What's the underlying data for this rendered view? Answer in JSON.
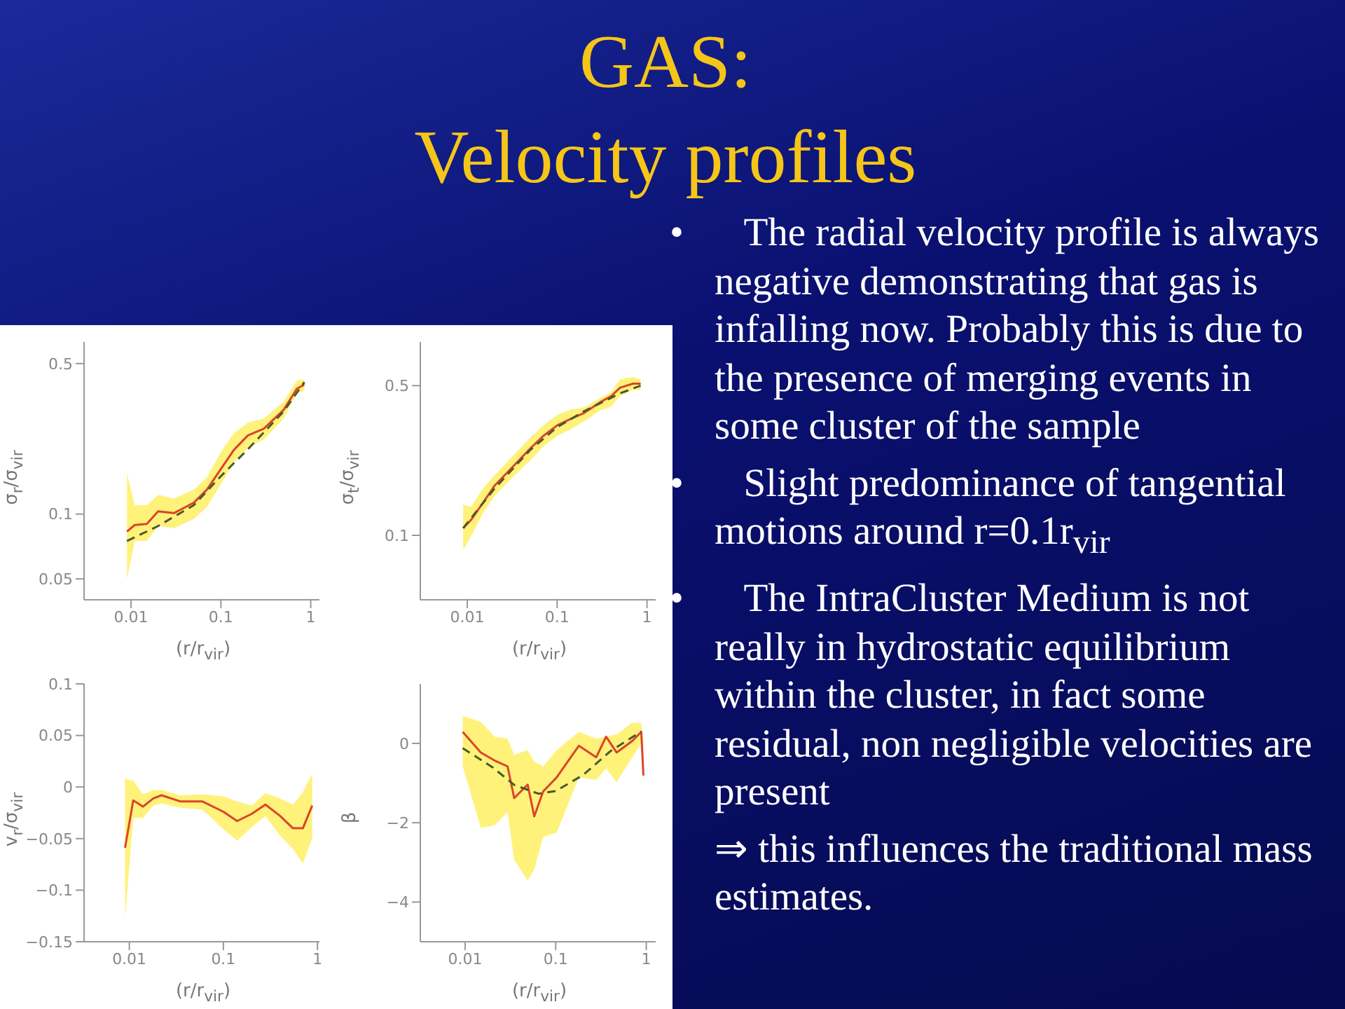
{
  "chart_data": [
    {
      "type": "other",
      "title": "GAS:",
      "subtitle": "Velocity profiles",
      "annotations": [
        "• The radial velocity profile is always negative demonstrating that gas is infalling now. Probably this is due to the presence of merging events in some cluster of the sample",
        "• Slight predominance of tangential motions around r=0.1r$_{vir}$",
        "• The IntraCluster Medium is not really in hydrostatic equilibrium within the cluster, in fact some residual, non negligible velocities are present",
        "⇒ this influences the traditional mass estimates."
      ]
    },
    {
      "type": "line",
      "xlabel": "(r/r$_{vir}$)",
      "ylabel": "σ$_{r}$/σ$_{vir}$",
      "log": "xy",
      "marker": "none",
      "xlim": [
        0.003,
        1.25
      ],
      "xticks": [
        0.01,
        0.1,
        1
      ],
      "ylim": [
        0.04,
        0.63
      ],
      "yticks": [
        0.05,
        0.1,
        0.5
      ],
      "series": [
        {
          "color": "#d9452b",
          "x": [
            0.009,
            0.011,
            0.015,
            0.02,
            0.03,
            0.05,
            0.07,
            0.1,
            0.14,
            0.2,
            0.3,
            0.5,
            0.7,
            0.85
          ],
          "values": [
            0.083,
            0.089,
            0.09,
            0.103,
            0.101,
            0.113,
            0.13,
            0.162,
            0.199,
            0.232,
            0.249,
            0.305,
            0.382,
            0.399
          ],
          "lower": [
            0.05,
            0.075,
            0.075,
            0.088,
            0.086,
            0.095,
            0.108,
            0.138,
            0.174,
            0.203,
            0.222,
            0.278,
            0.365,
            0.373
          ],
          "upper": [
            0.155,
            0.11,
            0.11,
            0.123,
            0.118,
            0.13,
            0.148,
            0.194,
            0.238,
            0.266,
            0.278,
            0.333,
            0.417,
            0.421
          ]
        },
        {
          "type": "line",
          "color": "#4a5a2a",
          "line_style": "dashed",
          "x": [
            0.009,
            0.02,
            0.05,
            0.1,
            0.2,
            0.5,
            0.85
          ],
          "values": [
            0.075,
            0.088,
            0.11,
            0.15,
            0.2,
            0.3,
            0.41
          ]
        }
      ]
    },
    {
      "type": "line",
      "xlabel": "(r/r$_{vir}$)",
      "ylabel": "σ$_{t}$/σ$_{vir}$",
      "log": "xy",
      "marker": "none",
      "xlim": [
        0.003,
        1.25
      ],
      "xticks": [
        0.01,
        0.1,
        1
      ],
      "ylim": [
        0.05,
        0.8
      ],
      "yticks": [
        0.1,
        0.5
      ],
      "series": [
        {
          "color": "#d9452b",
          "x": [
            0.009,
            0.011,
            0.015,
            0.02,
            0.03,
            0.05,
            0.07,
            0.1,
            0.14,
            0.2,
            0.3,
            0.4,
            0.5,
            0.7,
            0.85
          ],
          "values": [
            0.108,
            0.118,
            0.142,
            0.17,
            0.203,
            0.254,
            0.291,
            0.326,
            0.349,
            0.373,
            0.418,
            0.447,
            0.489,
            0.511,
            0.511
          ],
          "lower": [
            0.085,
            0.099,
            0.127,
            0.152,
            0.182,
            0.223,
            0.26,
            0.291,
            0.312,
            0.341,
            0.382,
            0.399,
            0.447,
            0.478,
            0.478
          ],
          "upper": [
            0.139,
            0.136,
            0.166,
            0.19,
            0.228,
            0.285,
            0.326,
            0.365,
            0.386,
            0.396,
            0.437,
            0.467,
            0.535,
            0.548,
            0.535
          ]
        },
        {
          "type": "line",
          "color": "#4a5a2a",
          "line_style": "dashed",
          "x": [
            0.009,
            0.02,
            0.05,
            0.1,
            0.2,
            0.5,
            0.85
          ],
          "values": [
            0.108,
            0.165,
            0.25,
            0.32,
            0.38,
            0.46,
            0.5
          ]
        }
      ]
    },
    {
      "type": "line",
      "xlabel": "(r/r$_{vir}$)",
      "ylabel": "v$_{r}$/σ$_{vir}$",
      "log": "x",
      "marker": "none",
      "xlim": [
        0.0033,
        1.05
      ],
      "xticks": [
        0.01,
        0.1,
        1
      ],
      "ylim": [
        -0.15,
        0.1
      ],
      "yticks": [
        -0.15,
        -0.1,
        -0.05,
        0,
        0.05,
        0.1
      ],
      "series": [
        {
          "color": "#d9452b",
          "x": [
            0.009,
            0.011,
            0.014,
            0.018,
            0.022,
            0.035,
            0.06,
            0.1,
            0.14,
            0.2,
            0.28,
            0.4,
            0.55,
            0.7,
            0.88
          ],
          "values": [
            -0.059,
            -0.013,
            -0.019,
            -0.011,
            -0.008,
            -0.014,
            -0.014,
            -0.024,
            -0.033,
            -0.026,
            -0.017,
            -0.028,
            -0.04,
            -0.04,
            -0.018
          ],
          "lower": [
            -0.127,
            -0.03,
            -0.03,
            -0.018,
            -0.016,
            -0.02,
            -0.022,
            -0.041,
            -0.052,
            -0.039,
            -0.028,
            -0.047,
            -0.06,
            -0.074,
            -0.05
          ],
          "upper": [
            0.008,
            0.006,
            -0.007,
            -0.003,
            -0.003,
            -0.008,
            -0.007,
            -0.009,
            -0.014,
            -0.018,
            -0.006,
            -0.011,
            -0.017,
            -0.005,
            0.013
          ]
        }
      ]
    },
    {
      "type": "line",
      "xlabel": "(r/r$_{vir}$)",
      "ylabel": "β",
      "log": "x",
      "marker": "none",
      "xlim": [
        0.0032,
        1.27
      ],
      "xticks": [
        0.01,
        0.1,
        1
      ],
      "ylim": [
        -5,
        1.5
      ],
      "yticks": [
        -4,
        -2,
        0
      ],
      "series": [
        {
          "color": "#d9452b",
          "x": [
            0.0094,
            0.0149,
            0.0211,
            0.0294,
            0.0348,
            0.049,
            0.058,
            0.0727,
            0.1023,
            0.18,
            0.28,
            0.36,
            0.47,
            0.7,
            0.88,
            0.93
          ],
          "values": [
            0.29,
            -0.23,
            -0.43,
            -0.58,
            -1.38,
            -1.04,
            -1.84,
            -1.21,
            -0.86,
            -0.06,
            -0.35,
            0.17,
            -0.23,
            0.06,
            0.29,
            -0.81
          ],
          "lower": [
            -0.58,
            -2.13,
            -2.07,
            -1.73,
            -2.94,
            -3.46,
            -3.17,
            -2.36,
            -2.25,
            -0.86,
            -0.92,
            -0.63,
            -0.98,
            -0.35,
            0,
            -1.04
          ],
          "upper": [
            0.69,
            0.54,
            0.17,
            0.12,
            -0.29,
            -0.17,
            -0.46,
            -0.58,
            -0.17,
            0.29,
            0.12,
            0.17,
            0.23,
            0.52,
            0.52,
            0
          ]
        },
        {
          "type": "line",
          "color": "#4a5a2a",
          "line_style": "dashed",
          "x": [
            0.0094,
            0.02,
            0.035,
            0.065,
            0.1,
            0.2,
            0.4,
            0.88
          ],
          "values": [
            -0.12,
            -0.6,
            -1.05,
            -1.27,
            -1.2,
            -0.8,
            -0.2,
            0.3
          ]
        }
      ]
    }
  ]
}
